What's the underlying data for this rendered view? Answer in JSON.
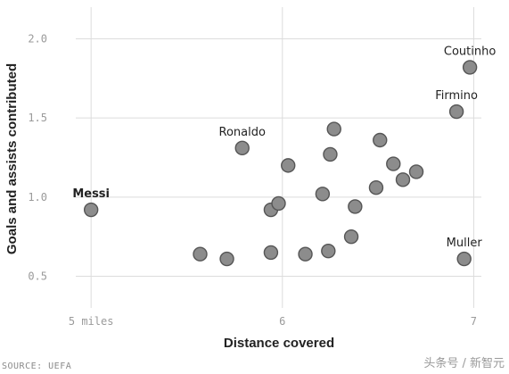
{
  "chart_data": {
    "type": "scatter",
    "title": "",
    "xlabel": "Distance covered",
    "ylabel": "Goals and assists contributed",
    "xlim": [
      4.92,
      7.04
    ],
    "ylim": [
      0.3,
      2.2
    ],
    "grid": true,
    "x_ticks": [
      {
        "value": 5,
        "label": "5 miles"
      },
      {
        "value": 6,
        "label": "6"
      },
      {
        "value": 7,
        "label": "7"
      }
    ],
    "y_ticks": [
      {
        "value": 0.5,
        "label": "0.5"
      },
      {
        "value": 1.0,
        "label": "1.0"
      },
      {
        "value": 1.5,
        "label": "1.5"
      },
      {
        "value": 2.0,
        "label": "2.0"
      }
    ],
    "point_color": "#8c8c8c",
    "point_stroke": "#555555",
    "points": [
      {
        "x": 5.0,
        "y": 0.92,
        "label": "Messi",
        "bold": true
      },
      {
        "x": 5.79,
        "y": 1.31,
        "label": "Ronaldo"
      },
      {
        "x": 6.98,
        "y": 1.82,
        "label": "Coutinho"
      },
      {
        "x": 6.91,
        "y": 1.54,
        "label": "Firmino"
      },
      {
        "x": 6.95,
        "y": 0.61,
        "label": "Muller"
      },
      {
        "x": 5.57,
        "y": 0.64
      },
      {
        "x": 5.71,
        "y": 0.61
      },
      {
        "x": 5.94,
        "y": 0.65
      },
      {
        "x": 6.12,
        "y": 0.64
      },
      {
        "x": 6.24,
        "y": 0.66
      },
      {
        "x": 6.36,
        "y": 0.75
      },
      {
        "x": 5.94,
        "y": 0.92
      },
      {
        "x": 5.98,
        "y": 0.96
      },
      {
        "x": 6.21,
        "y": 1.02
      },
      {
        "x": 6.38,
        "y": 0.94
      },
      {
        "x": 6.03,
        "y": 1.2
      },
      {
        "x": 6.25,
        "y": 1.27
      },
      {
        "x": 6.27,
        "y": 1.43
      },
      {
        "x": 6.51,
        "y": 1.36
      },
      {
        "x": 6.49,
        "y": 1.06
      },
      {
        "x": 6.58,
        "y": 1.21
      },
      {
        "x": 6.63,
        "y": 1.11
      },
      {
        "x": 6.7,
        "y": 1.16
      }
    ]
  },
  "footer": {
    "source": "SOURCE: UEFA",
    "watermark": "头条号 / 新智元"
  }
}
